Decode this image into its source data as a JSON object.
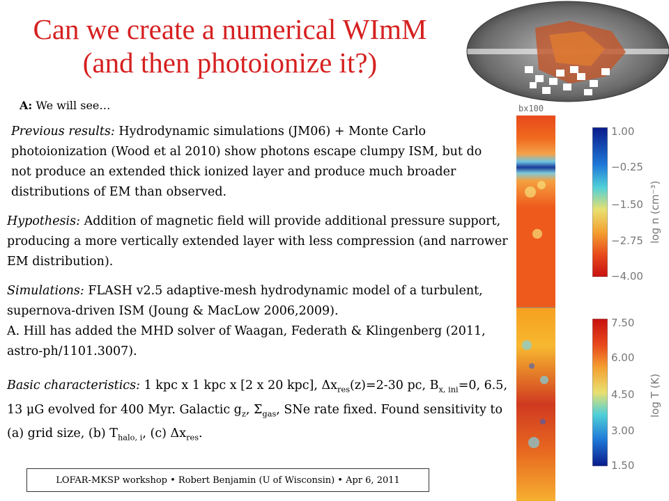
{
  "title_line1": "Can we create a numerical WImM",
  "title_line2": "(and then photoionize it?)",
  "answer_label": "A:",
  "answer_text": "We will see…",
  "previous": {
    "label": "Previous results:",
    "text": "Hydrodynamic simulations (JM06) + Monte Carlo photoionization (Wood et al 2010) show photons escape clumpy ISM, but do not produce an extended thick ionized layer and produce much broader distributions of EM than observed."
  },
  "hypothesis": {
    "label": "Hypothesis:",
    "text": "Addition of magnetic field will provide additional pressure support, producing a more vertically extended layer with less compression (and narrower EM distribution)."
  },
  "simulations": {
    "label": "Simulations:",
    "text1": "FLASH v2.5 adaptive-mesh hydrodynamic model of a turbulent, supernova-driven ISM (Joung & MacLow 2006,2009).",
    "text2": "A. Hill has added the MHD solver of Waagan, Federath & Klingenberg (2011, astro-ph/1101.3007)."
  },
  "basic": {
    "label": "Basic characteristics:",
    "t1": "1 kpc x 1 kpc x [2 x 20 kpc],",
    "delta": "Δ",
    "x": "x",
    "res_sub": "res",
    "t2": "(z)=2-30 pc,",
    "B": "B",
    "B_sub": "x, ini",
    "t3": "=0, 6.5, 13",
    "mu": "μ",
    "t4": "G evolved for 400 Myr.  Galactic g",
    "gz_sub": "z",
    "t5": ",",
    "sigma": "Σ",
    "gas_sub": "gas",
    "t6": ", SNe rate fixed. Found sensitivity to (a) grid size, (b) T",
    "halo_sub": "halo, i",
    "t7": ", (c)",
    "t8": "x",
    "t9": "."
  },
  "footer": "LOFAR-MKSP workshop • Robert Benjamin (U of Wisconsin) • Apr 6, 2011",
  "panel_label": "bx100",
  "density_colorbar": {
    "ticks": [
      "1.00",
      "−0.25",
      "−1.50",
      "−2.75",
      "−4.00"
    ],
    "label": "log n (cm⁻³)"
  },
  "temperature_colorbar": {
    "ticks": [
      "7.50",
      "6.00",
      "4.50",
      "3.00",
      "1.50"
    ],
    "label": "log T (K)"
  },
  "colors": {
    "title": "#d62020",
    "axis_gray": "#777777"
  }
}
